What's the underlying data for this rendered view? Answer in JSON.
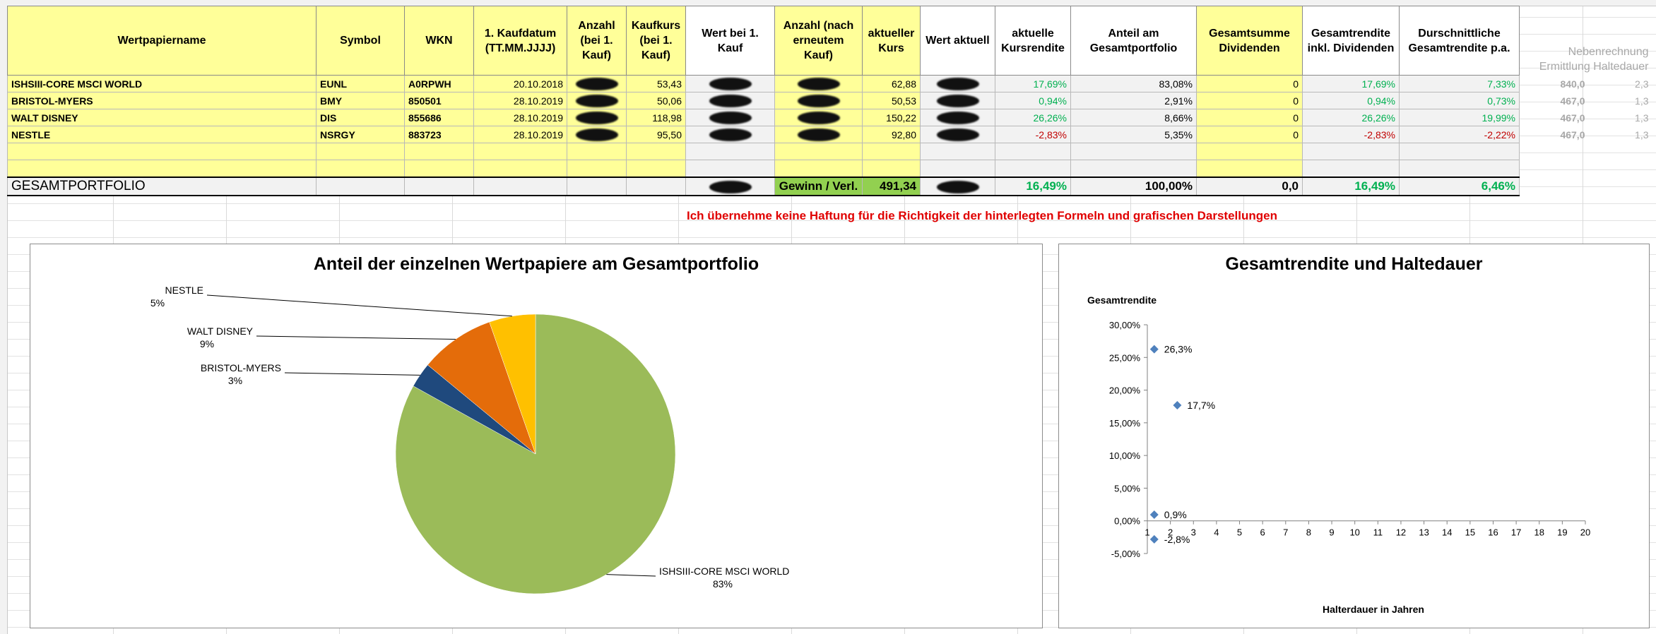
{
  "table": {
    "headers": [
      "Wertpapiername",
      "Symbol",
      "WKN",
      "1. Kaufdatum (TT.MM.JJJJ)",
      "Anzahl (bei 1. Kauf)",
      "Kaufkurs (bei 1. Kauf)",
      "Wert bei 1. Kauf",
      "Anzahl (nach erneutem Kauf)",
      "aktueller Kurs",
      "Wert aktuell",
      "aktuelle Kursrendite",
      "Anteil am Gesamtportfolio",
      "Gesamtsumme Dividenden",
      "Gesamtrendite inkl. Dividenden",
      "Durschnittliche Gesamtrendite p.a."
    ],
    "side_header": "Nebenrechnung Ermittlung Haltedauer",
    "rows": [
      {
        "name": "ISHSIII-CORE MSCI WORLD",
        "symbol": "EUNL",
        "wkn": "A0RPWH",
        "date": "20.10.2018",
        "kurs_kauf": "53,43",
        "kurs_akt": "62,88",
        "kursrendite": "17,69%",
        "anteil": "83,08%",
        "dividenden": "0",
        "gesamtrendite": "17,69%",
        "rendite_pa": "7,33%",
        "side1": "840,0",
        "side2": "2,3"
      },
      {
        "name": "BRISTOL-MYERS",
        "symbol": "BMY",
        "wkn": "850501",
        "date": "28.10.2019",
        "kurs_kauf": "50,06",
        "kurs_akt": "50,53",
        "kursrendite": "0,94%",
        "anteil": "2,91%",
        "dividenden": "0",
        "gesamtrendite": "0,94%",
        "rendite_pa": "0,73%",
        "side1": "467,0",
        "side2": "1,3"
      },
      {
        "name": "WALT DISNEY",
        "symbol": "DIS",
        "wkn": "855686",
        "date": "28.10.2019",
        "kurs_kauf": "118,98",
        "kurs_akt": "150,22",
        "kursrendite": "26,26%",
        "anteil": "8,66%",
        "dividenden": "0",
        "gesamtrendite": "26,26%",
        "rendite_pa": "19,99%",
        "side1": "467,0",
        "side2": "1,3"
      },
      {
        "name": "NESTLE",
        "symbol": "NSRGY",
        "wkn": "883723",
        "date": "28.10.2019",
        "kurs_kauf": "95,50",
        "kurs_akt": "92,80",
        "kursrendite": "-2,83%",
        "anteil": "5,35%",
        "dividenden": "0",
        "gesamtrendite": "-2,83%",
        "rendite_pa": "-2,22%",
        "side1": "467,0",
        "side2": "1,3"
      }
    ],
    "total": {
      "name": "GESAMTPORTFOLIO",
      "gewinn_label": "Gewinn / Verl.",
      "gewinn": "491,34",
      "kursrendite": "16,49%",
      "anteil": "100,00%",
      "dividenden": "0,0",
      "gesamtrendite": "16,49%",
      "rendite_pa": "6,46%"
    }
  },
  "disclaimer": "Ich übernehme keine Haftung für die Richtigkeit der hinterlegten Formeln und grafischen Darstellungen",
  "colors": {
    "header_fill": "#ffff99",
    "total_fill": "#92d050",
    "positive": "#00b050",
    "negative": "#c00000",
    "disclaimer": "#e00000"
  },
  "chart_data": [
    {
      "type": "pie",
      "title": "Anteil der einzelnen Wertpapiere am Gesamtportfolio",
      "slices": [
        {
          "label": "ISHSIII-CORE MSCI WORLD",
          "pct_label": "83%",
          "value": 83.08,
          "color": "#9bbb59"
        },
        {
          "label": "BRISTOL-MYERS",
          "pct_label": "3%",
          "value": 2.91,
          "color": "#1f497d"
        },
        {
          "label": "WALT DISNEY",
          "pct_label": "9%",
          "value": 8.66,
          "color": "#e46c0a"
        },
        {
          "label": "NESTLE",
          "pct_label": "5%",
          "value": 5.35,
          "color": "#ffc000"
        }
      ]
    },
    {
      "type": "scatter",
      "title": "Gesamtrendite und Haltedauer",
      "xlabel": "Halterdauer in Jahren",
      "ylabel": "Gesamtrendite",
      "xlim": [
        1,
        20
      ],
      "ylim": [
        -5,
        30
      ],
      "xticks": [
        "1",
        "2",
        "3",
        "4",
        "5",
        "6",
        "7",
        "8",
        "9",
        "10",
        "11",
        "12",
        "13",
        "14",
        "15",
        "16",
        "17",
        "18",
        "19",
        "20"
      ],
      "yticks": [
        "-5,00%",
        "0,00%",
        "5,00%",
        "10,00%",
        "15,00%",
        "20,00%",
        "25,00%",
        "30,00%"
      ],
      "points": [
        {
          "x": 2.3,
          "y": 17.69,
          "label": "17,7%"
        },
        {
          "x": 1.3,
          "y": 0.94,
          "label": "0,9%"
        },
        {
          "x": 1.3,
          "y": 26.26,
          "label": "26,3%"
        },
        {
          "x": 1.3,
          "y": -2.83,
          "label": "-2,8%"
        }
      ],
      "marker_color": "#4f81bd"
    }
  ]
}
